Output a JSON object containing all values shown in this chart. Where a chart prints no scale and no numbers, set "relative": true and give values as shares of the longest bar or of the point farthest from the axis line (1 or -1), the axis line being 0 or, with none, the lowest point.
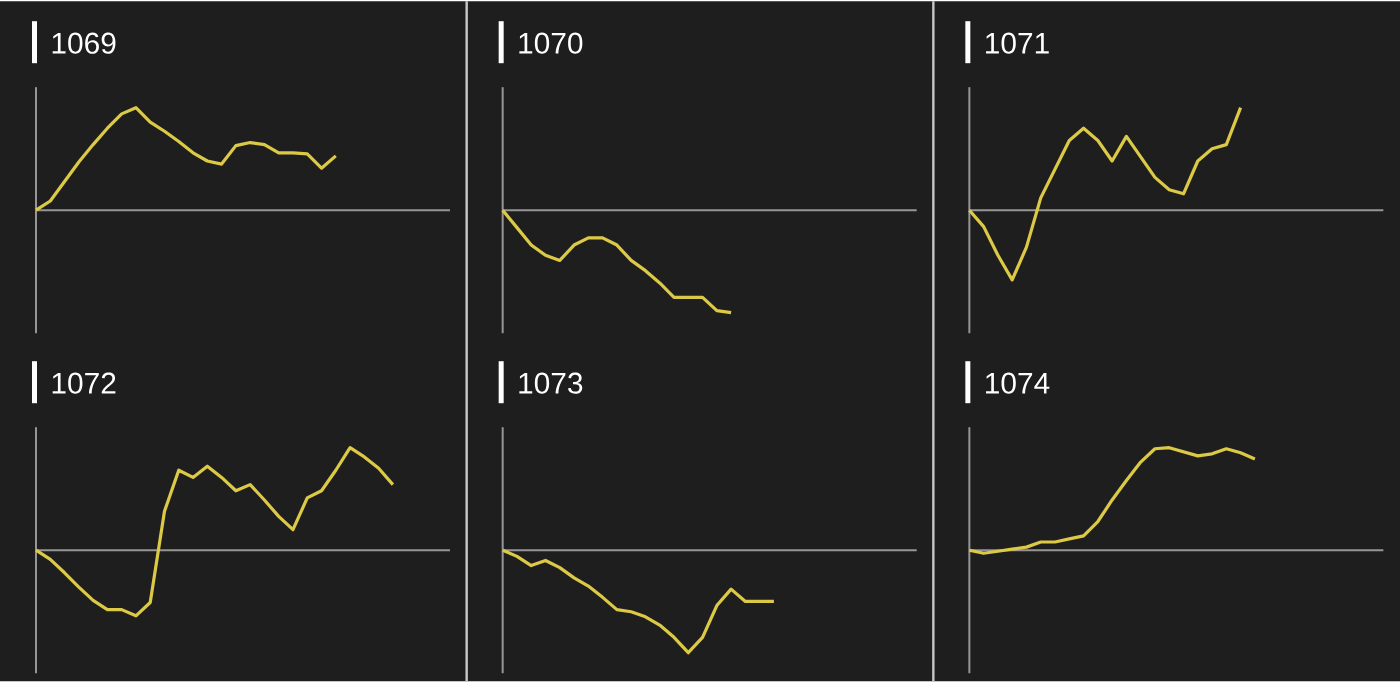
{
  "chart_data": [
    {
      "type": "line",
      "title": "1069",
      "relative": true,
      "categories": [
        null,
        null,
        null,
        null,
        null,
        null,
        null,
        null,
        null,
        null,
        null,
        null,
        null,
        null,
        null,
        null,
        null,
        null,
        null,
        null,
        null,
        null,
        null,
        null,
        null,
        null,
        null,
        null,
        null,
        null
      ],
      "series": [
        {
          "color": "#dcc945",
          "values": [
            0,
            0.09,
            0.28,
            0.47,
            0.64,
            0.8,
            0.94,
            1,
            0.86,
            0.77,
            0.67,
            0.56,
            0.48,
            0.45,
            0.63,
            0.66,
            0.64,
            0.56,
            0.56,
            0.55,
            0.41,
            0.53,
            null,
            null,
            null,
            null,
            null,
            null,
            null,
            null
          ]
        }
      ]
    },
    {
      "type": "line",
      "title": "1070",
      "relative": true,
      "categories": [
        null,
        null,
        null,
        null,
        null,
        null,
        null,
        null,
        null,
        null,
        null,
        null,
        null,
        null,
        null,
        null,
        null,
        null,
        null,
        null,
        null,
        null,
        null,
        null,
        null,
        null,
        null,
        null,
        null,
        null
      ],
      "series": [
        {
          "color": "#dcc945",
          "values": [
            0,
            -0.17,
            -0.34,
            -0.44,
            -0.49,
            -0.34,
            -0.27,
            -0.27,
            -0.34,
            -0.49,
            -0.59,
            -0.71,
            -0.85,
            -0.85,
            -0.85,
            -0.98,
            -1,
            null,
            null,
            null,
            null,
            null,
            null,
            null,
            null,
            null,
            null,
            null,
            null,
            null
          ]
        }
      ]
    },
    {
      "type": "line",
      "title": "1071",
      "relative": true,
      "categories": [
        null,
        null,
        null,
        null,
        null,
        null,
        null,
        null,
        null,
        null,
        null,
        null,
        null,
        null,
        null,
        null,
        null,
        null,
        null,
        null,
        null,
        null,
        null,
        null,
        null,
        null,
        null,
        null,
        null,
        null
      ],
      "series": [
        {
          "color": "#dcc945",
          "values": [
            0,
            -0.16,
            -0.44,
            -0.68,
            -0.36,
            0.12,
            0.4,
            0.68,
            0.8,
            0.68,
            0.48,
            0.72,
            0.52,
            0.32,
            0.2,
            0.16,
            0.48,
            0.6,
            0.64,
            1,
            null,
            null,
            null,
            null,
            null,
            null,
            null,
            null,
            null,
            null
          ]
        }
      ]
    },
    {
      "type": "line",
      "title": "1072",
      "relative": true,
      "categories": [
        null,
        null,
        null,
        null,
        null,
        null,
        null,
        null,
        null,
        null,
        null,
        null,
        null,
        null,
        null,
        null,
        null,
        null,
        null,
        null,
        null,
        null,
        null,
        null,
        null,
        null,
        null,
        null,
        null,
        null
      ],
      "series": [
        {
          "color": "#dcc945",
          "values": [
            0,
            -0.09,
            -0.22,
            -0.36,
            -0.49,
            -0.58,
            -0.58,
            -0.64,
            -0.51,
            0.38,
            0.78,
            0.71,
            0.82,
            0.71,
            0.58,
            0.64,
            0.49,
            0.33,
            0.2,
            0.51,
            0.58,
            0.78,
            1,
            0.91,
            0.8,
            0.64,
            null,
            null,
            null,
            null
          ]
        }
      ]
    },
    {
      "type": "line",
      "title": "1073",
      "relative": true,
      "categories": [
        null,
        null,
        null,
        null,
        null,
        null,
        null,
        null,
        null,
        null,
        null,
        null,
        null,
        null,
        null,
        null,
        null,
        null,
        null,
        null,
        null,
        null,
        null,
        null,
        null,
        null,
        null,
        null,
        null,
        null
      ],
      "series": [
        {
          "color": "#dcc945",
          "values": [
            0,
            -0.06,
            -0.15,
            -0.1,
            -0.17,
            -0.27,
            -0.35,
            -0.46,
            -0.58,
            -0.6,
            -0.65,
            -0.73,
            -0.85,
            -1,
            -0.85,
            -0.54,
            -0.38,
            -0.5,
            -0.5,
            -0.5,
            null,
            null,
            null,
            null,
            null,
            null,
            null,
            null,
            null,
            null
          ]
        }
      ]
    },
    {
      "type": "line",
      "title": "1074",
      "relative": true,
      "categories": [
        null,
        null,
        null,
        null,
        null,
        null,
        null,
        null,
        null,
        null,
        null,
        null,
        null,
        null,
        null,
        null,
        null,
        null,
        null,
        null,
        null,
        null,
        null,
        null,
        null,
        null,
        null,
        null,
        null,
        null
      ],
      "series": [
        {
          "color": "#dcc945",
          "values": [
            0,
            -0.03,
            -0.01,
            0.01,
            0.03,
            0.08,
            0.08,
            0.11,
            0.14,
            0.28,
            0.49,
            0.68,
            0.86,
            0.99,
            1,
            0.96,
            0.92,
            0.94,
            0.99,
            0.95,
            0.89,
            null,
            null,
            null,
            null,
            null,
            null,
            null,
            null,
            null
          ]
        }
      ]
    }
  ]
}
